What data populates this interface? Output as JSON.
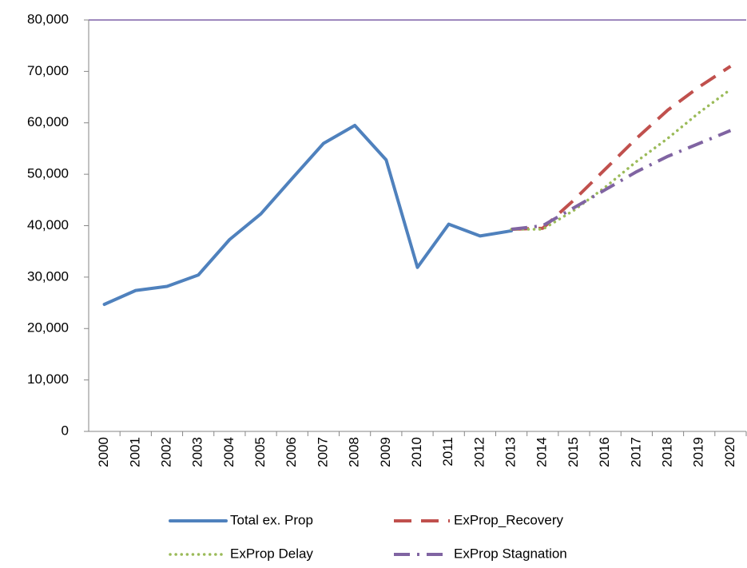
{
  "chart_data": {
    "type": "line",
    "categories": [
      "2000",
      "2001",
      "2002",
      "2003",
      "2004",
      "2005",
      "2006",
      "2007",
      "2008",
      "2009",
      "2010",
      "2011",
      "2012",
      "2013",
      "2014",
      "2015",
      "2016",
      "2017",
      "2018",
      "2019",
      "2020"
    ],
    "series": [
      {
        "name": "Total ex. Prop",
        "color": "#4f81bd",
        "style": "solid",
        "values": [
          24700,
          27400,
          28200,
          30400,
          37300,
          42300,
          49200,
          56000,
          59500,
          52800,
          31900,
          40300,
          38000,
          39000,
          null,
          null,
          null,
          null,
          null,
          null,
          null
        ]
      },
      {
        "name": "ExProp_Recovery",
        "color": "#c0504d",
        "style": "dash",
        "values": [
          null,
          null,
          null,
          null,
          null,
          null,
          null,
          null,
          null,
          null,
          null,
          null,
          null,
          39300,
          39500,
          45000,
          51000,
          57000,
          62500,
          67000,
          71000
        ]
      },
      {
        "name": "ExProp Delay",
        "color": "#9bbb59",
        "style": "dot",
        "values": [
          null,
          null,
          null,
          null,
          null,
          null,
          null,
          null,
          null,
          null,
          null,
          null,
          null,
          39300,
          39300,
          43000,
          47500,
          52500,
          57000,
          62000,
          66500
        ]
      },
      {
        "name": "ExProp Stagnation",
        "color": "#8064a2",
        "style": "dashdot",
        "values": [
          null,
          null,
          null,
          null,
          null,
          null,
          null,
          null,
          null,
          null,
          null,
          null,
          null,
          39300,
          40000,
          43500,
          47000,
          50500,
          53500,
          56000,
          58500
        ]
      }
    ],
    "ylim": [
      0,
      80000
    ],
    "yticks": [
      0,
      {
        "value": 10000,
        "label": "10,000"
      },
      {
        "value": 20000,
        "label": "20,000"
      },
      {
        "value": 30000,
        "label": "30,000"
      },
      {
        "value": 40000,
        "label": "40,000"
      },
      {
        "value": 50000,
        "label": "50,000"
      },
      {
        "value": 60000,
        "label": "60,000"
      },
      {
        "value": 70000,
        "label": "70,000"
      },
      {
        "value": 80000,
        "label": "80,000"
      }
    ],
    "grid": false,
    "legend": "bottom"
  }
}
